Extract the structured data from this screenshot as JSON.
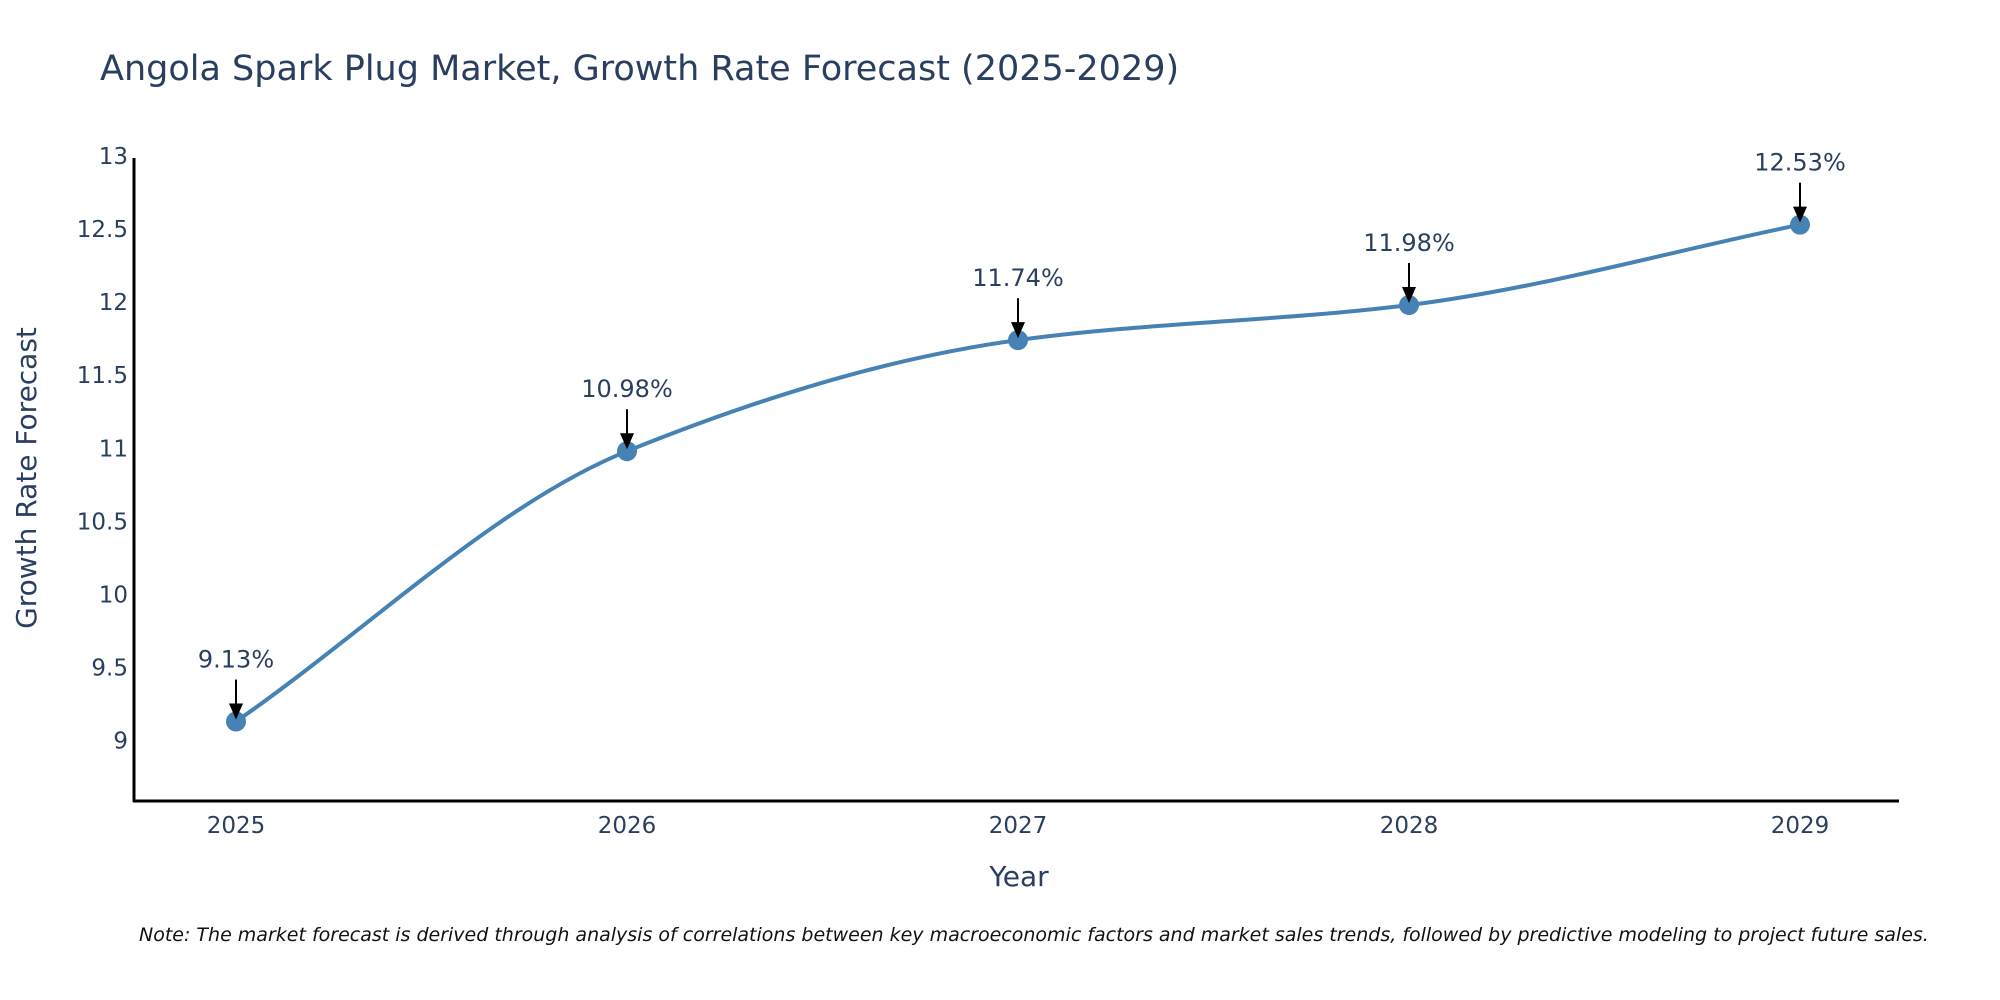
{
  "chart_data": {
    "type": "line",
    "title": "Angola Spark Plug Market, Growth Rate Forecast (2025-2029)",
    "xlabel": "Year",
    "ylabel": "Growth Rate Forecast",
    "categories": [
      "2025",
      "2026",
      "2027",
      "2028",
      "2029"
    ],
    "values": [
      9.13,
      10.98,
      11.74,
      11.98,
      12.53
    ],
    "data_labels": [
      "9.13%",
      "10.98%",
      "11.74%",
      "11.98%",
      "12.53%"
    ],
    "ylim": [
      8.6,
      13
    ],
    "yticks": [
      9,
      9.5,
      10,
      10.5,
      11,
      11.5,
      12,
      12.5,
      13
    ],
    "ytick_labels": [
      "9",
      "9.5",
      "10",
      "10.5",
      "11",
      "11.5",
      "12",
      "12.5",
      "13"
    ],
    "grid": false,
    "line_shape": "spline",
    "markers": true,
    "note": "Note: The market forecast is derived through analysis of correlations between key macroeconomic factors and market sales trends, followed by predictive modeling to project future sales."
  },
  "colors": {
    "line": "#4682b4",
    "marker": "#4682b4",
    "axis": "#000000",
    "text": "#2a3f5f",
    "arrow": "#000000"
  }
}
